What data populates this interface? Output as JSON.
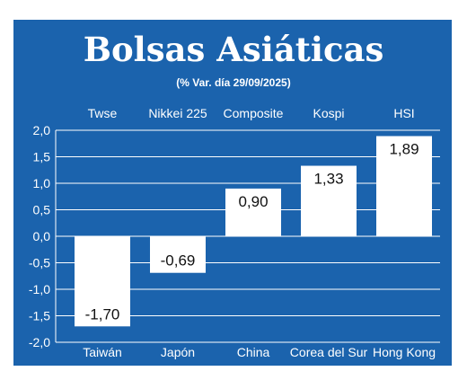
{
  "chart_data": {
    "type": "bar",
    "title": "Bolsas Asiáticas",
    "subtitle": "(% Var. día  29/09/2025)",
    "index_names": [
      "Twse",
      "Nikkei 225",
      "Composite",
      "Kospi",
      "HSI"
    ],
    "categories": [
      "Taiwán",
      "Japón",
      "China",
      "Corea del Sur",
      "Hong Kong"
    ],
    "values": [
      -1.7,
      -0.69,
      0.9,
      1.33,
      1.89
    ],
    "value_labels": [
      "-1,70",
      "-0,69",
      "0,90",
      "1,33",
      "1,89"
    ],
    "ylim": [
      -2.0,
      2.0
    ],
    "yticks": [
      "2,0",
      "1,5",
      "1,0",
      "0,5",
      "0,0",
      "-0,5",
      "-1,0",
      "-1,5",
      "-2,0"
    ],
    "grid": true,
    "colors": {
      "background": "#1b63ad",
      "bar": "#ffffff",
      "grid": "#ffffff",
      "text": "#ffffff"
    }
  }
}
